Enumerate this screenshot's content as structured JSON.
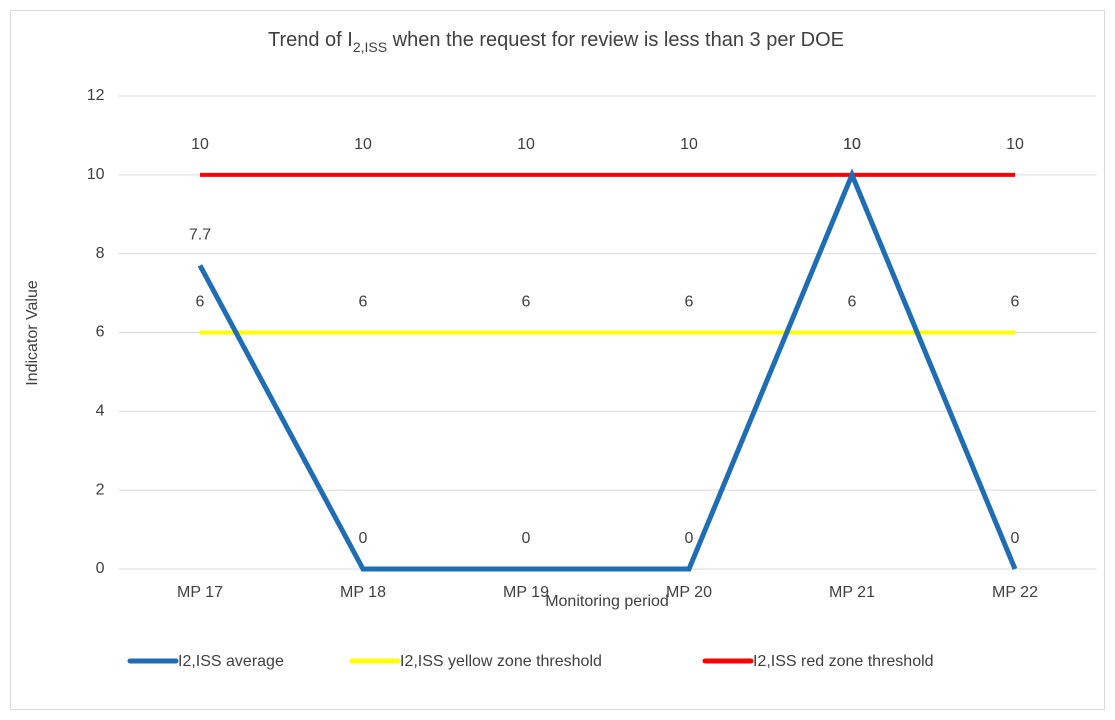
{
  "chart_data": {
    "type": "line",
    "title": [
      "Trend of I",
      "2,ISS",
      " when the request for review is less than 3 per DOE"
    ],
    "x_label": "Monitoring period",
    "y_label": "Indicator Value",
    "categories": [
      "MP 17",
      "MP 18",
      "MP 19",
      "MP 20",
      "MP 21",
      "MP 22"
    ],
    "series": [
      {
        "name": "I2,ISS average",
        "color": "#1f6db5",
        "values": [
          7.7,
          0,
          0,
          0,
          10,
          0
        ]
      },
      {
        "name": "I2,ISS yellow zone threshold",
        "color": "#ffff00",
        "values": [
          6,
          6,
          6,
          6,
          6,
          6
        ]
      },
      {
        "name": "I2,ISS red zone threshold",
        "color": "#ff0000",
        "values": [
          10,
          10,
          10,
          10,
          10,
          10
        ]
      }
    ],
    "ylim": [
      0,
      12
    ],
    "yticks": [
      0,
      2,
      4,
      6,
      8,
      10,
      12
    ],
    "grid": true,
    "legend": "bottom"
  }
}
